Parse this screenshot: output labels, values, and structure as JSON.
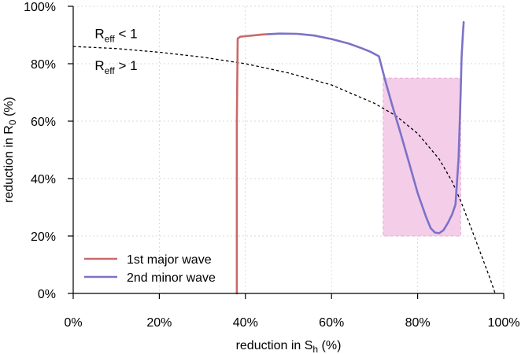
{
  "chart_data": {
    "type": "line",
    "title": "",
    "xlabel": {
      "main": "reduction in S",
      "sub": "h",
      "suffix": " (%)"
    },
    "ylabel": {
      "main": "reduction in R",
      "sub": "0",
      "suffix": " (%)"
    },
    "xlim": [
      0,
      100
    ],
    "ylim": [
      0,
      100
    ],
    "x_ticks": [
      0,
      20,
      40,
      60,
      80,
      100
    ],
    "x_tick_labels": [
      "0%",
      "20%",
      "40%",
      "60%",
      "80%",
      "100%"
    ],
    "y_ticks": [
      0,
      20,
      40,
      60,
      80,
      100
    ],
    "y_tick_labels": [
      "0%",
      "20%",
      "40%",
      "60%",
      "80%",
      "100%"
    ],
    "grid": true,
    "legend_position": "bottom-left",
    "colors": {
      "wave1": "#c86a6a",
      "wave2": "#7b72c8",
      "region": "#f4cde9",
      "region_edge": "#e6a8d6",
      "threshold": "#000000",
      "grid": "#d9d9d9"
    },
    "annotations": [
      {
        "base": "R",
        "sub": "eff",
        "rest": " < 1",
        "x": 5,
        "y": 90.5
      },
      {
        "base": "R",
        "sub": "eff",
        "rest": " > 1",
        "x": 5,
        "y": 79.5
      }
    ],
    "threshold_curve": {
      "style": "dashed",
      "x": [
        0,
        10,
        20,
        30,
        40,
        50,
        60,
        70,
        75,
        80,
        85,
        88,
        90,
        92,
        94,
        96,
        97,
        98
      ],
      "y": [
        86,
        85.3,
        84,
        82.3,
        80,
        76.8,
        72.6,
        66.2,
        61.8,
        55.7,
        46.8,
        39,
        32.2,
        24.5,
        16.5,
        8.5,
        4.4,
        0
      ]
    },
    "highlight_region": {
      "x": [
        72,
        90
      ],
      "y": [
        20,
        75
      ]
    },
    "series": [
      {
        "name": "1st major wave",
        "color_key": "wave1",
        "x": [
          38,
          38,
          38,
          38.2,
          38.8,
          40,
          42,
          44,
          45.3
        ],
        "y": [
          0,
          30,
          60,
          88.8,
          89.4,
          89.6,
          89.9,
          90.2,
          90.3
        ]
      },
      {
        "name": "2nd minor wave",
        "color_key": "wave2",
        "x": [
          45.3,
          48,
          52,
          56,
          60,
          64,
          67,
          69,
          71,
          72.5,
          74,
          76,
          78,
          80,
          82,
          83,
          84,
          85,
          86,
          87,
          88,
          88.8,
          89.5,
          89.8,
          90,
          90.2,
          90.5,
          90.7
        ],
        "y": [
          90.3,
          90.5,
          90.4,
          89.8,
          88.6,
          87,
          85.4,
          84.2,
          82.6,
          74,
          66,
          56,
          45.5,
          35,
          26.5,
          22.8,
          21.2,
          21,
          22,
          24.5,
          27.5,
          31,
          47,
          60,
          70,
          82,
          90,
          94.5
        ]
      }
    ]
  }
}
